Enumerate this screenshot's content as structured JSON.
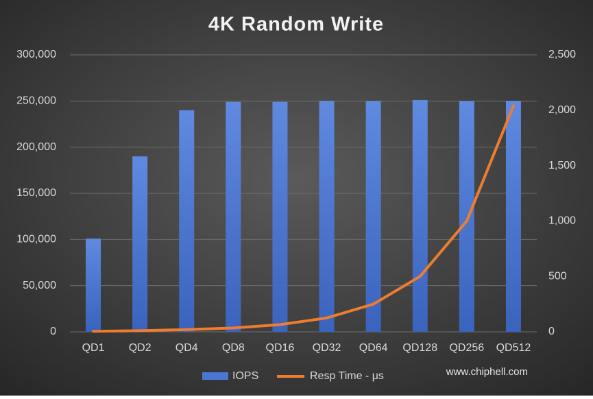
{
  "chart_data": {
    "type": "bar-line",
    "title": "4K Random Write",
    "categories": [
      "QD1",
      "QD2",
      "QD4",
      "QD8",
      "QD16",
      "QD32",
      "QD64",
      "QD128",
      "QD256",
      "QD512"
    ],
    "series": [
      {
        "name": "IOPS",
        "type": "bar",
        "color": "#4a78d0",
        "values": [
          101000,
          190000,
          240000,
          249000,
          249000,
          250000,
          250000,
          251000,
          250000,
          250000
        ]
      },
      {
        "name": "Resp Time - μs",
        "type": "line",
        "axis": "y2",
        "color": "#ed7d31",
        "values": [
          5,
          10,
          20,
          35,
          65,
          125,
          250,
          500,
          1000,
          2040
        ]
      }
    ],
    "ylim": [
      0,
      300000
    ],
    "yticks": [
      0,
      {
        "value": 50000,
        "label": "50,000"
      },
      {
        "value": 100000,
        "label": "100,000"
      },
      {
        "value": 150000,
        "label": "150,000"
      },
      {
        "value": 200000,
        "label": "200,000"
      },
      {
        "value": 250000,
        "label": "250,000"
      },
      {
        "value": 300000,
        "label": "300,000"
      }
    ],
    "y2lim": [
      0,
      2500
    ],
    "y2ticks": [
      0,
      500,
      {
        "value": 1000,
        "label": "1,000"
      },
      {
        "value": 1500,
        "label": "1,500"
      },
      {
        "value": 2000,
        "label": "2,000"
      },
      {
        "value": 2500,
        "label": "2,500"
      }
    ],
    "grid": true,
    "legend": "bottom",
    "watermark": "www.chiphell.com"
  }
}
